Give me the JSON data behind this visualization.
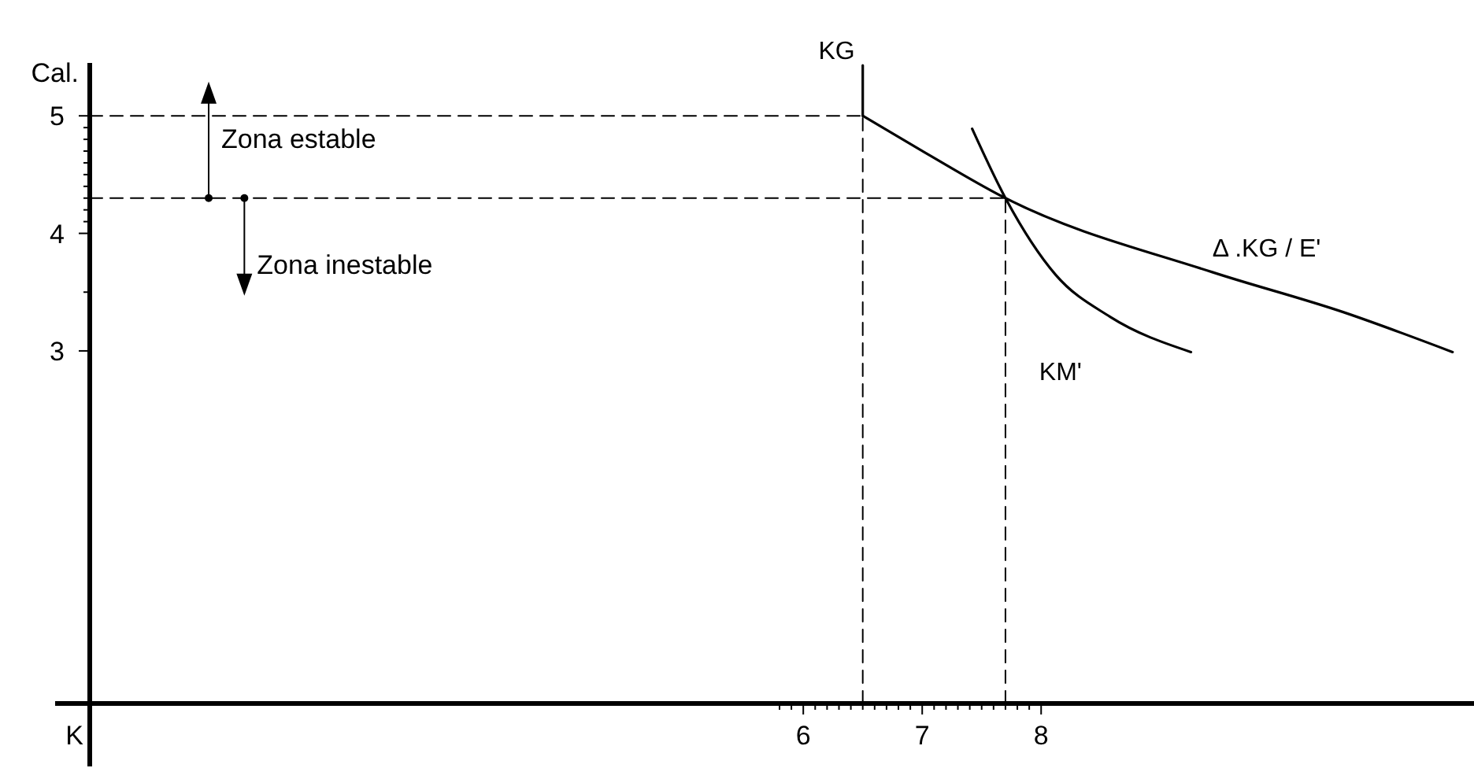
{
  "chart_data": {
    "type": "line",
    "ylabel": "Cal.",
    "xlim": [
      0,
      11.64
    ],
    "ylim": [
      0,
      5.45
    ],
    "xticks": [
      {
        "value": 5.8,
        "label": null
      },
      {
        "value": 5.9,
        "label": null
      },
      6,
      {
        "value": 6.1,
        "label": null
      },
      {
        "value": 6.2,
        "label": null
      },
      {
        "value": 6.3,
        "label": null
      },
      {
        "value": 6.4,
        "label": null
      },
      {
        "value": 6.5,
        "label": null
      },
      {
        "value": 6.6,
        "label": null
      },
      {
        "value": 6.7,
        "label": null
      },
      {
        "value": 6.8,
        "label": null
      },
      {
        "value": 6.9,
        "label": null
      },
      7,
      {
        "value": 7.1,
        "label": null
      },
      {
        "value": 7.2,
        "label": null
      },
      {
        "value": 7.3,
        "label": null
      },
      {
        "value": 7.4,
        "label": null
      },
      {
        "value": 7.5,
        "label": null
      },
      {
        "value": 7.6,
        "label": null
      },
      {
        "value": 7.7,
        "label": null
      },
      {
        "value": 7.8,
        "label": null
      },
      {
        "value": 7.9,
        "label": null
      },
      8
    ],
    "yticks": [
      3,
      {
        "value": 3.5,
        "label": null
      },
      4,
      {
        "value": 4.1,
        "label": null
      },
      {
        "value": 4.2,
        "label": null
      },
      {
        "value": 4.3,
        "label": null
      },
      {
        "value": 4.4,
        "label": null
      },
      {
        "value": 4.5,
        "label": null
      },
      {
        "value": 4.6,
        "label": null
      },
      {
        "value": 4.7,
        "label": null
      },
      {
        "value": 4.8,
        "label": null
      },
      {
        "value": 4.9,
        "label": null
      },
      5
    ],
    "series": [
      {
        "name": "KG",
        "color": "#000000",
        "x": [
          6.5,
          6.5
        ],
        "values": [
          5,
          5.43
        ]
      },
      {
        "name": "Δ .KG / E'",
        "color": "#000000",
        "x": [
          6.5,
          7.02,
          7.7,
          9.44,
          10.54,
          11.46
        ],
        "values": [
          5,
          4.69,
          4.3,
          3.67,
          3.33,
          2.99
        ]
      },
      {
        "name": "KM'",
        "color": "#000000",
        "x": [
          7.42,
          7.7,
          8.12,
          8.58,
          9.26
        ],
        "values": [
          4.89,
          4.3,
          3.65,
          3.29,
          2.99
        ]
      },
      {
        "color": "#000000",
        "line_style": "dashed",
        "x": [
          0,
          6.5
        ],
        "values": [
          5,
          5
        ]
      },
      {
        "color": "#000000",
        "line_style": "dashed",
        "x": [
          0,
          7.7
        ],
        "values": [
          4.3,
          4.3
        ]
      },
      {
        "color": "#000000",
        "line_style": "dashed",
        "x": [
          6.5,
          6.5
        ],
        "values": [
          0,
          5
        ]
      },
      {
        "color": "#000000",
        "line_style": "dashed",
        "x": [
          7.7,
          7.7
        ],
        "values": [
          0,
          4.3
        ]
      }
    ],
    "annotations": [
      {
        "text": "Zona estable",
        "x": 1.0,
        "y": 4.3
      },
      {
        "text": "Zona inestable",
        "x": 1.3,
        "y": 4.3
      },
      "K"
    ],
    "grid": false,
    "legend": false,
    "marker": "none"
  }
}
